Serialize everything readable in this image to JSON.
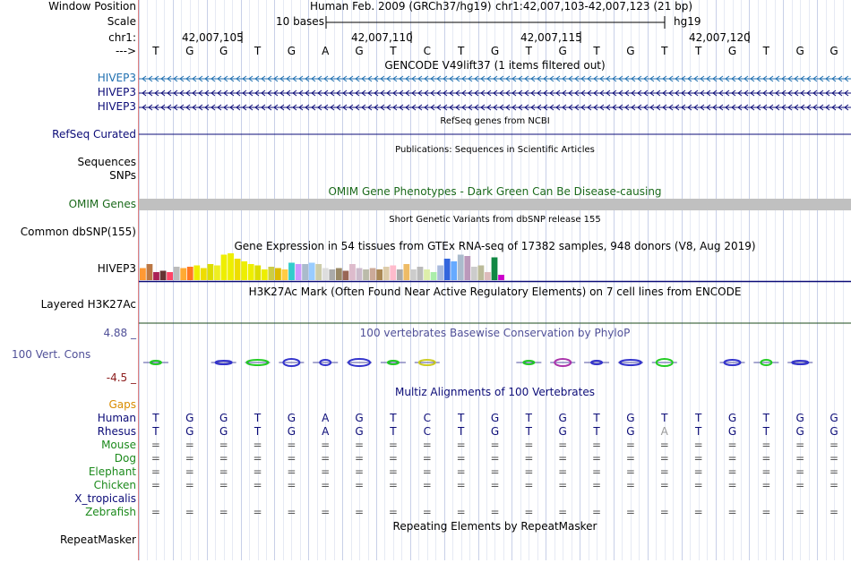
{
  "header": {
    "window_position_label": "Window Position",
    "scale_label": "Scale",
    "chrom_label": "chr1:",
    "strand_label": "--->",
    "assembly": "Human Feb. 2009 (GRCh37/hg19)",
    "position": "chr1:42,007,103-42,007,123 (21 bp)",
    "scale_text": "10 bases",
    "assembly_short": "hg19",
    "coord_ticks": [
      "42,007,105",
      "42,007,110",
      "42,007,115",
      "42,007,120"
    ]
  },
  "sequence": [
    "T",
    "G",
    "G",
    "T",
    "G",
    "A",
    "G",
    "T",
    "C",
    "T",
    "G",
    "T",
    "G",
    "T",
    "G",
    "T",
    "T",
    "G",
    "T",
    "G",
    "G"
  ],
  "tracks": {
    "gencode": {
      "title": "GENCODE V49lift37 (1 items filtered out)",
      "rows": [
        "HIVEP3",
        "HIVEP3",
        "HIVEP3"
      ]
    },
    "refseq": {
      "title": "RefSeq genes from NCBI",
      "label": "RefSeq Curated"
    },
    "publications": {
      "title": "Publications: Sequences in Scientific Articles",
      "label1": "Sequences",
      "label2": "SNPs"
    },
    "omim": {
      "title": "OMIM Gene Phenotypes - Dark Green Can Be Disease-causing",
      "label": "OMIM Genes"
    },
    "dbsnp": {
      "title": "Short Genetic Variants from dbSNP release 155",
      "label": "Common dbSNP(155)"
    },
    "gtex": {
      "title": "Gene Expression in 54 tissues from GTEx RNA-seq of 17382 samples, 948 donors (V8, Aug 2019)",
      "label": "HIVEP3",
      "values": [
        0.45,
        0.6,
        0.3,
        0.35,
        0.3,
        0.5,
        0.45,
        0.5,
        0.55,
        0.45,
        0.6,
        0.55,
        0.95,
        1.0,
        0.8,
        0.7,
        0.6,
        0.55,
        0.4,
        0.5,
        0.45,
        0.4,
        0.65,
        0.6,
        0.6,
        0.65,
        0.6,
        0.45,
        0.4,
        0.45,
        0.35,
        0.6,
        0.45,
        0.4,
        0.45,
        0.4,
        0.5,
        0.55,
        0.4,
        0.6,
        0.4,
        0.5,
        0.4,
        0.3,
        0.55,
        0.8,
        0.7,
        0.95,
        0.9,
        0.5,
        0.55,
        0.3,
        0.85,
        0.2
      ],
      "colors": [
        "#ff9933",
        "#bb7744",
        "#aa2255",
        "#663333",
        "#ff4466",
        "#bbbbbb",
        "#ffaa33",
        "#ff7722",
        "#eeee00",
        "#eedd00",
        "#dddd00",
        "#eeee22",
        "#eeee00",
        "#eeee00",
        "#eedd00",
        "#eeee00",
        "#eeee00",
        "#dddd00",
        "#eeee00",
        "#cccc44",
        "#ddbb00",
        "#ffcc44",
        "#33cccc",
        "#cc99ff",
        "#aabbcc",
        "#99ccff",
        "#ccccaa",
        "#dddddd",
        "#aaaaaa",
        "#998866",
        "#996655",
        "#ddbbcc",
        "#ccbbcc",
        "#bbbbaa",
        "#ccaa99",
        "#aa8855",
        "#ddccaa",
        "#ffbbcc",
        "#aaaaaa",
        "#eebb66",
        "#cccccc",
        "#bbbbbb",
        "#ddeeaa",
        "#aaeeaa",
        "#aabbdd",
        "#3366dd",
        "#66aaff",
        "#aabbcc",
        "#bb99bb",
        "#cccccc",
        "#bbbb99",
        "#ddbbbb",
        "#118844",
        "#cc00cc"
      ]
    },
    "h3k27ac": {
      "title": "H3K27Ac Mark (Often Found Near Active Regulatory Elements) on 7 cell lines from ENCODE",
      "label": "Layered H3K27Ac"
    },
    "phylop": {
      "title": "100 vertebrates Basewise Conservation by PhyloP",
      "label": "100 Vert. Cons",
      "max_label": "4.88 _",
      "min_label": "-4.5 _"
    },
    "multiz": {
      "title": "Multiz Alignments of 100 Vertebrates",
      "gaps_label": "Gaps",
      "species": [
        {
          "name": "Human",
          "row": [
            "T",
            "G",
            "G",
            "T",
            "G",
            "A",
            "G",
            "T",
            "C",
            "T",
            "G",
            "T",
            "G",
            "T",
            "G",
            "T",
            "T",
            "G",
            "T",
            "G",
            "G"
          ]
        },
        {
          "name": "Rhesus",
          "row": [
            "T",
            "G",
            "G",
            "T",
            "G",
            "A",
            "G",
            "T",
            "C",
            "T",
            "G",
            "T",
            "G",
            "T",
            "G",
            "A",
            "T",
            "G",
            "T",
            "G",
            "G"
          ]
        },
        {
          "name": "Mouse",
          "row": [
            "=",
            "=",
            "=",
            "=",
            "=",
            "=",
            "=",
            "=",
            "=",
            "=",
            "=",
            "=",
            "=",
            "=",
            "=",
            "=",
            "=",
            "=",
            "=",
            "=",
            "="
          ]
        },
        {
          "name": "Dog",
          "row": [
            "=",
            "=",
            "=",
            "=",
            "=",
            "=",
            "=",
            "=",
            "=",
            "=",
            "=",
            "=",
            "=",
            "=",
            "=",
            "=",
            "=",
            "=",
            "=",
            "=",
            "="
          ]
        },
        {
          "name": "Elephant",
          "row": [
            "=",
            "=",
            "=",
            "=",
            "=",
            "=",
            "=",
            "=",
            "=",
            "=",
            "=",
            "=",
            "=",
            "=",
            "=",
            "=",
            "=",
            "=",
            "=",
            "=",
            "="
          ]
        },
        {
          "name": "Chicken",
          "row": [
            "=",
            "=",
            "=",
            "=",
            "=",
            "=",
            "=",
            "=",
            "=",
            "=",
            "=",
            "=",
            "=",
            "=",
            "=",
            "=",
            "=",
            "=",
            "=",
            "=",
            "="
          ]
        },
        {
          "name": "X_tropicalis",
          "row": []
        },
        {
          "name": "Zebrafish",
          "row": [
            "=",
            "=",
            "=",
            "=",
            "=",
            "=",
            "=",
            "=",
            "=",
            "=",
            "=",
            "=",
            "=",
            "=",
            "=",
            "=",
            "=",
            "=",
            "=",
            "=",
            "="
          ]
        }
      ]
    },
    "repeatmasker": {
      "title": "Repeating Elements by RepeatMasker",
      "label": "RepeatMasker"
    }
  },
  "colors": {
    "gencode": "#1f6fb0",
    "navy": "#0c0c78",
    "omim_green": "#1b6a1b",
    "omim_bar": "#c0c0c0",
    "phylop_label": "#505098",
    "phylop_min": "#8b1a1a",
    "gaps": "#d98c00",
    "species_green": "#1c8a1c",
    "divider": "#e08080",
    "grid": "#cfd8f0"
  }
}
